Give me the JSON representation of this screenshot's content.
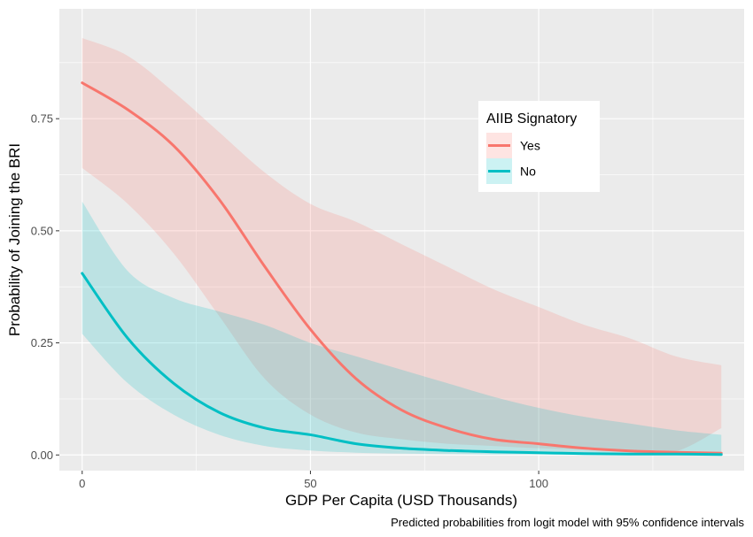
{
  "chart_data": {
    "type": "line",
    "xlabel": "GDP Per Capita (USD Thousands)",
    "ylabel": "Probability of Joining the BRI",
    "caption": "Predicted probabilities from logit model with 95% confidence intervals",
    "xlim": [
      -5,
      145
    ],
    "ylim": [
      -0.035,
      0.995
    ],
    "x_ticks": [
      0,
      50,
      100
    ],
    "x_tick_labels": [
      "0",
      "50",
      "100"
    ],
    "y_ticks": [
      0,
      0.25,
      0.5,
      0.75
    ],
    "y_tick_labels": [
      "0.00",
      "0.25",
      "0.50",
      "0.75"
    ],
    "grid": true,
    "legend": {
      "title": "AIIB Signatory",
      "position": "right-top-inside",
      "entries": [
        "Yes",
        "No"
      ]
    },
    "series": [
      {
        "name": "Yes",
        "color": "#F8766D",
        "x": [
          0,
          10,
          20,
          30,
          40,
          50,
          60,
          70,
          80,
          90,
          100,
          110,
          120,
          130,
          140
        ],
        "y": [
          0.83,
          0.77,
          0.69,
          0.57,
          0.42,
          0.28,
          0.17,
          0.1,
          0.06,
          0.035,
          0.025,
          0.015,
          0.009,
          0.006,
          0.004
        ],
        "lower": [
          0.64,
          0.56,
          0.45,
          0.31,
          0.17,
          0.09,
          0.05,
          0.035,
          0.025,
          0.02,
          0.015,
          0.012,
          0.01,
          0.008,
          0.06
        ],
        "upper": [
          0.93,
          0.89,
          0.81,
          0.72,
          0.63,
          0.56,
          0.52,
          0.47,
          0.42,
          0.37,
          0.33,
          0.29,
          0.26,
          0.22,
          0.2
        ]
      },
      {
        "name": "No",
        "color": "#00BFC4",
        "x": [
          0,
          10,
          20,
          30,
          40,
          50,
          60,
          70,
          80,
          90,
          100,
          110,
          120,
          130,
          140
        ],
        "y": [
          0.405,
          0.26,
          0.16,
          0.095,
          0.06,
          0.045,
          0.025,
          0.015,
          0.01,
          0.007,
          0.005,
          0.003,
          0.002,
          0.002,
          0.001
        ],
        "lower": [
          0.27,
          0.16,
          0.09,
          0.045,
          0.02,
          0.01,
          0.005,
          0.003,
          0.002,
          0.001,
          0.001,
          0.0,
          0.0,
          0.0,
          0.0
        ],
        "upper": [
          0.565,
          0.41,
          0.35,
          0.32,
          0.29,
          0.25,
          0.22,
          0.19,
          0.16,
          0.13,
          0.105,
          0.085,
          0.07,
          0.055,
          0.045
        ]
      }
    ]
  }
}
